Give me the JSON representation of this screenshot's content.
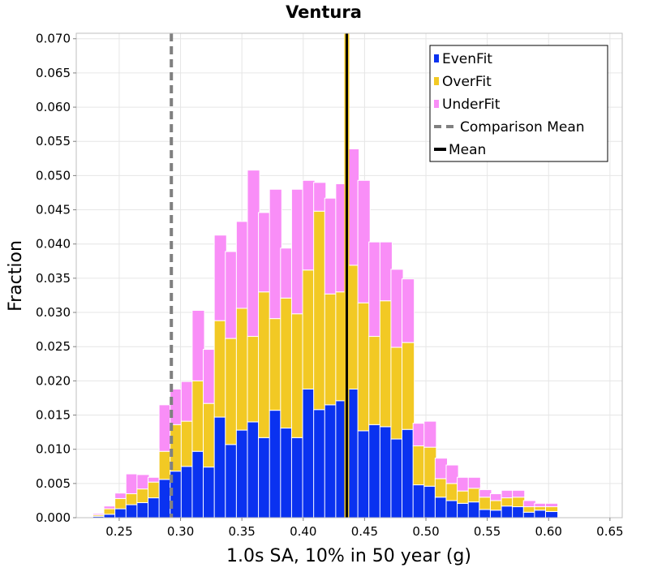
{
  "chart_data": {
    "type": "bar",
    "stacked": true,
    "title": "Ventura",
    "xlabel": "1.0s SA, 10% in 50 year (g)",
    "ylabel": "Fraction",
    "xlim": [
      0.215,
      0.66
    ],
    "ylim": [
      0,
      0.0708
    ],
    "bin_width": 0.01,
    "x_ticks": [
      0.25,
      0.3,
      0.35,
      0.4,
      0.45,
      0.5,
      0.55,
      0.6,
      0.65
    ],
    "x_tick_labels": [
      "0.25",
      "0.30",
      "0.35",
      "0.40",
      "0.45",
      "0.50",
      "0.55",
      "0.60",
      "0.65"
    ],
    "y_ticks": [
      0,
      0.005,
      0.01,
      0.015,
      0.02,
      0.025,
      0.03,
      0.035,
      0.04,
      0.045,
      0.05,
      0.055,
      0.06,
      0.065,
      0.07
    ],
    "y_tick_labels": [
      "0.000",
      "0.005",
      "0.010",
      "0.015",
      "0.020",
      "0.025",
      "0.030",
      "0.035",
      "0.040",
      "0.045",
      "0.050",
      "0.055",
      "0.060",
      "0.065",
      "0.070"
    ],
    "grid": true,
    "legend_position": "top-right",
    "x": [
      0.2245,
      0.2335,
      0.2425,
      0.2515,
      0.2605,
      0.2695,
      0.2785,
      0.2875,
      0.2965,
      0.3055,
      0.3145,
      0.3235,
      0.3325,
      0.3415,
      0.3505,
      0.3595,
      0.3685,
      0.3775,
      0.3865,
      0.3955,
      0.4045,
      0.4135,
      0.4225,
      0.4315,
      0.4405,
      0.4495,
      0.4585,
      0.4675,
      0.4765,
      0.4855,
      0.4945,
      0.5035,
      0.5125,
      0.5215,
      0.5305,
      0.5395,
      0.5485,
      0.5575,
      0.5665,
      0.5755,
      0.5845,
      0.5935,
      0.6025,
      0.6115,
      0.6205,
      0.6295,
      0.6385,
      0.6475,
      0.6565
    ],
    "series": [
      {
        "name": "EvenFit",
        "color": "#0a32f0",
        "values": [
          0.0001,
          0.0002,
          0.0005,
          0.0013,
          0.0019,
          0.0022,
          0.0029,
          0.0056,
          0.0068,
          0.0075,
          0.0097,
          0.0074,
          0.0147,
          0.0107,
          0.0128,
          0.014,
          0.0117,
          0.0157,
          0.0131,
          0.0117,
          0.0188,
          0.0158,
          0.0165,
          0.0171,
          0.0188,
          0.0127,
          0.0136,
          0.0133,
          0.0115,
          0.0129,
          0.0048,
          0.0046,
          0.003,
          0.0025,
          0.0021,
          0.0023,
          0.0012,
          0.0011,
          0.0017,
          0.0016,
          0.0008,
          0.0011,
          0.0009,
          0,
          0,
          0,
          0,
          0,
          0
        ]
      },
      {
        "name": "OverFit",
        "color": "#f2c924",
        "values": [
          0,
          0.0002,
          0.0008,
          0.0015,
          0.0016,
          0.002,
          0.0023,
          0.0041,
          0.0068,
          0.0066,
          0.0103,
          0.0093,
          0.0141,
          0.0155,
          0.0178,
          0.0125,
          0.0213,
          0.0134,
          0.019,
          0.0181,
          0.0174,
          0.029,
          0.0162,
          0.0159,
          0.0181,
          0.0187,
          0.0129,
          0.0184,
          0.0134,
          0.0127,
          0.0057,
          0.0057,
          0.0027,
          0.0025,
          0.0018,
          0.002,
          0.0018,
          0.0014,
          0.0012,
          0.0014,
          0.0008,
          0.0005,
          0.0007,
          0,
          0,
          0,
          0,
          0,
          0
        ]
      },
      {
        "name": "UnderFit",
        "color": "#f98ef7",
        "values": [
          0,
          0.0002,
          0.0004,
          0.0008,
          0.0029,
          0.0021,
          0.0007,
          0.0068,
          0.0052,
          0.0058,
          0.0103,
          0.0079,
          0.0125,
          0.0127,
          0.0127,
          0.0243,
          0.0116,
          0.0189,
          0.0073,
          0.0182,
          0.0131,
          0.0042,
          0.014,
          0.0158,
          0.017,
          0.0179,
          0.0138,
          0.0086,
          0.0114,
          0.0093,
          0.0033,
          0.0038,
          0.003,
          0.0027,
          0.002,
          0.0016,
          0.0011,
          0.001,
          0.0011,
          0.001,
          0.0009,
          0.0005,
          0.0005,
          0,
          0,
          0,
          0,
          0,
          0
        ]
      }
    ],
    "lines": [
      {
        "name": "Comparison Mean",
        "x": 0.2925,
        "color": "#808080",
        "style": "dashed"
      },
      {
        "name": "Mean",
        "x": 0.4355,
        "color": "#000000",
        "style": "solid"
      }
    ]
  }
}
